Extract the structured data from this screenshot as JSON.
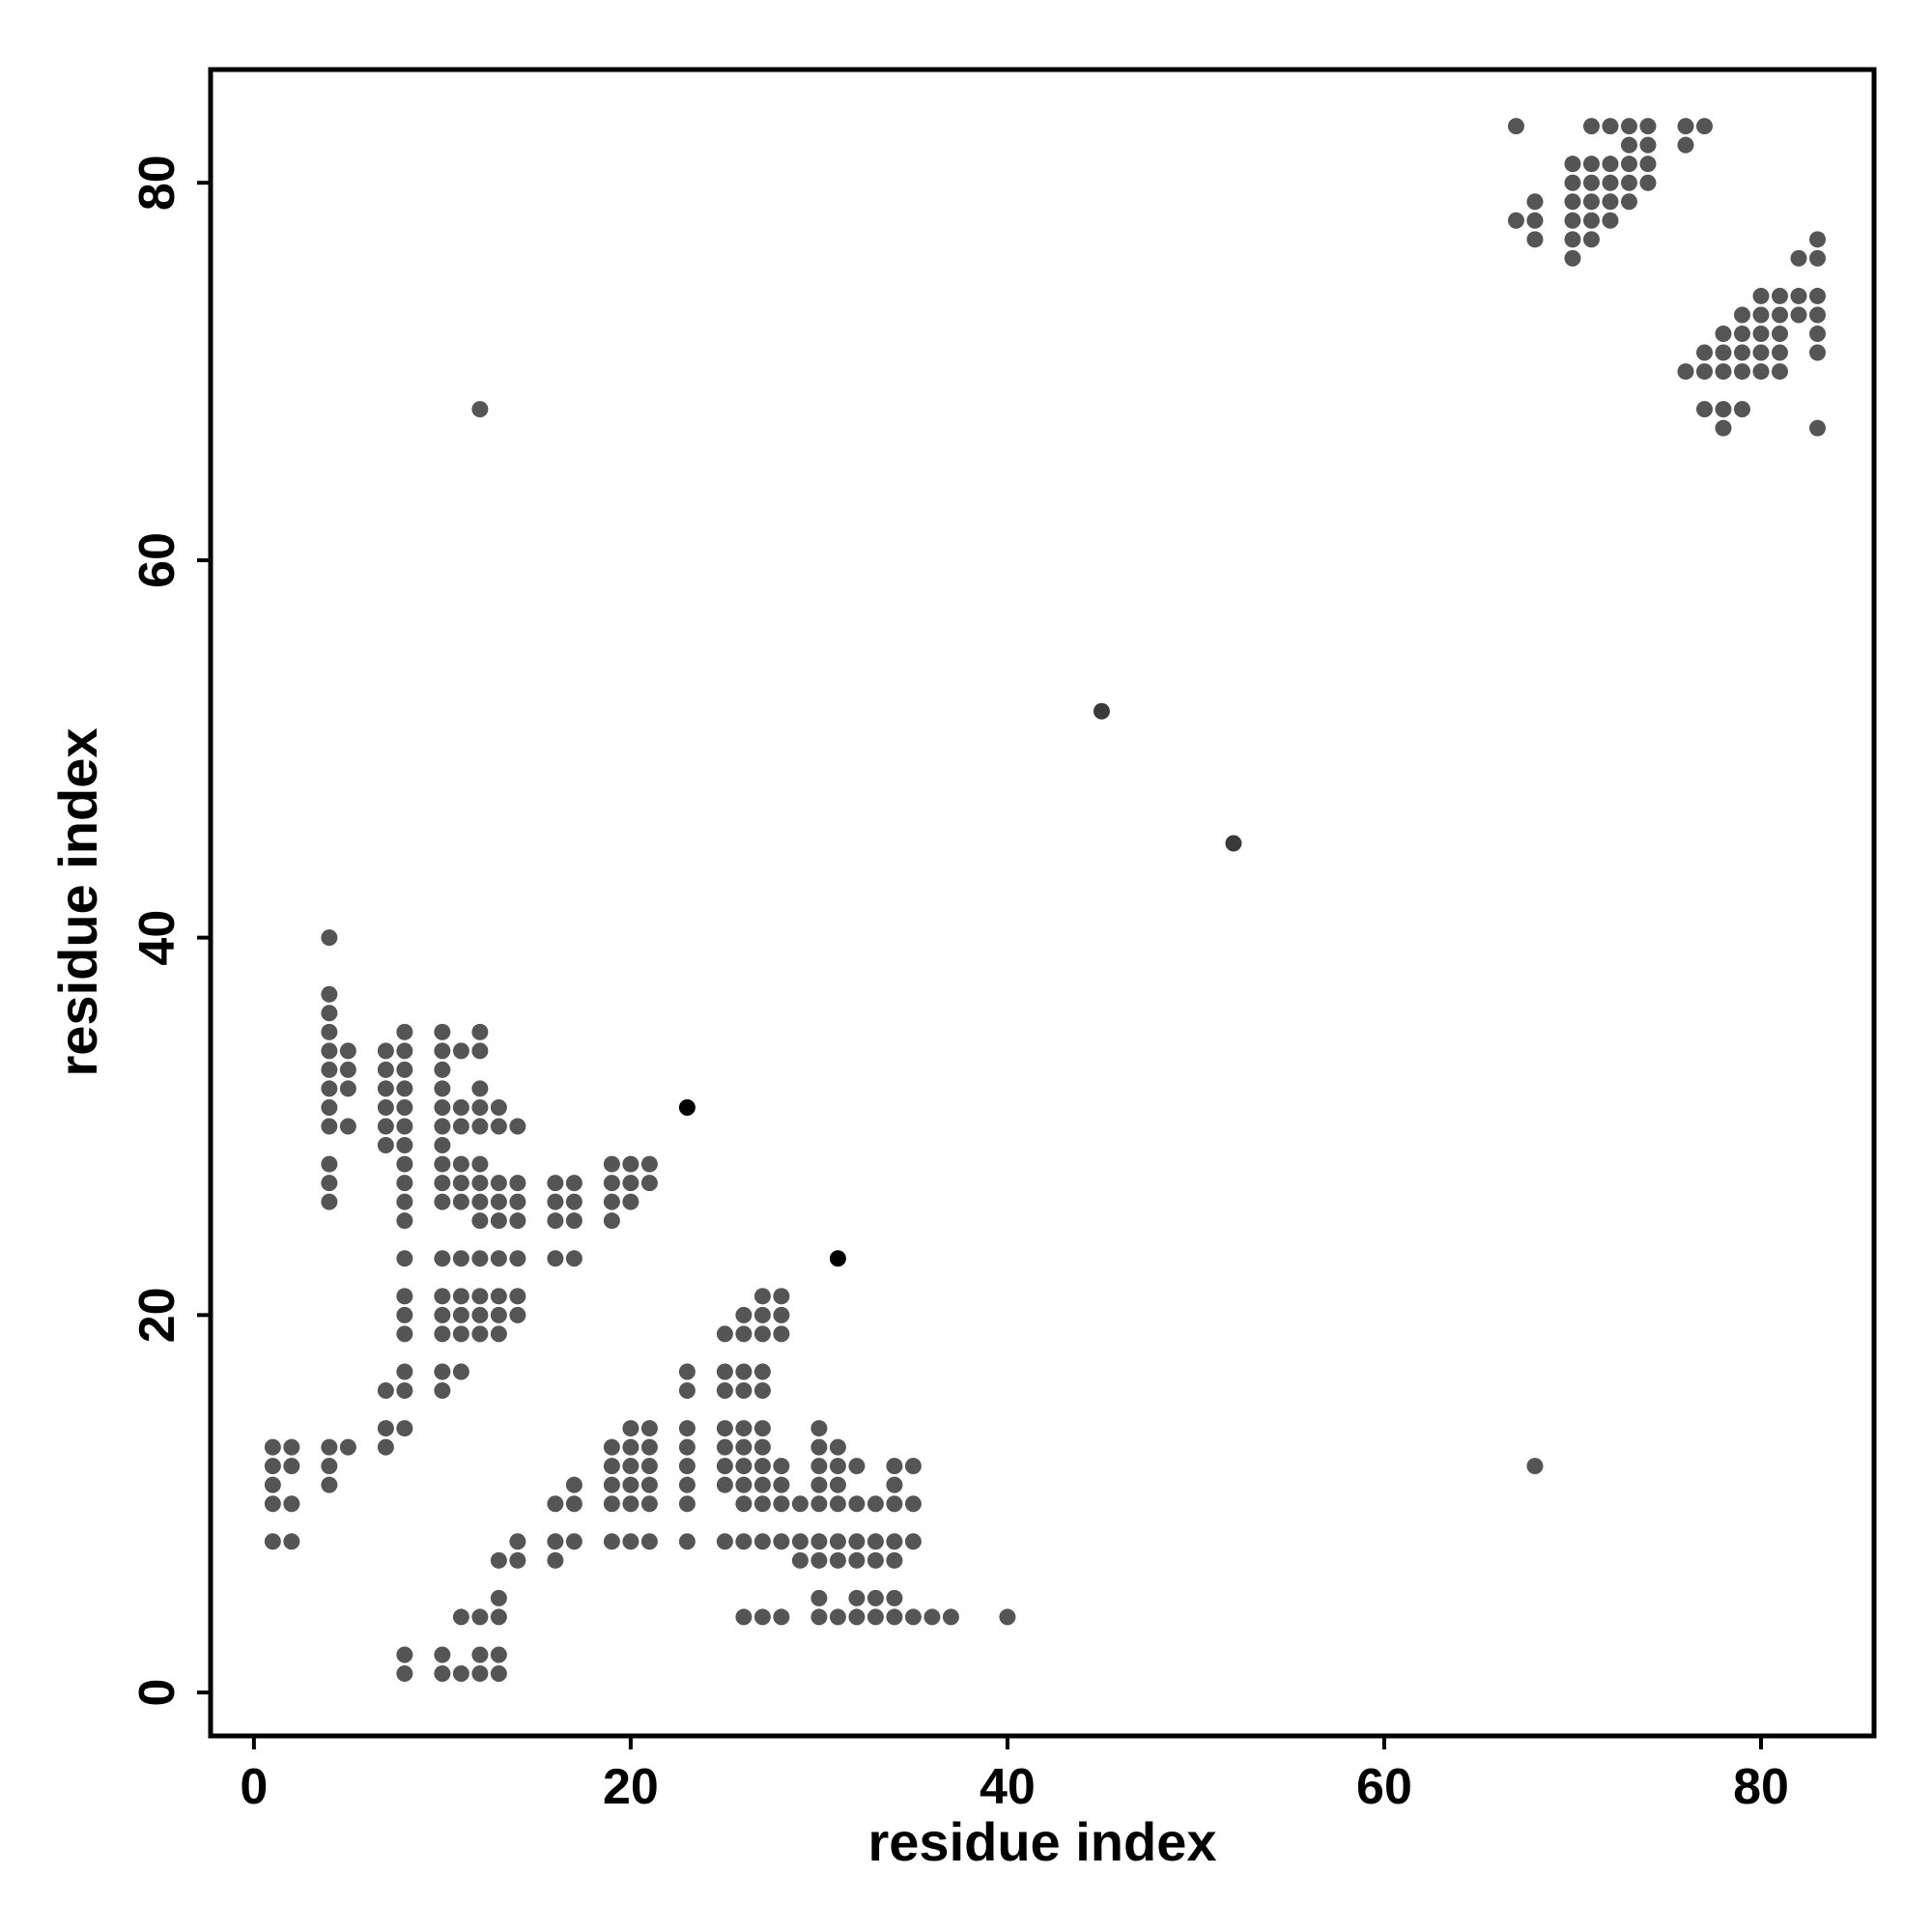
{
  "chart_data": {
    "type": "scatter",
    "title": "",
    "xlabel": "residue index",
    "ylabel": "residue index",
    "xlim": [
      -2.3,
      86
    ],
    "ylim": [
      -2.3,
      86
    ],
    "xticks": [
      0,
      20,
      40,
      60,
      80
    ],
    "yticks": [
      0,
      20,
      40,
      60,
      80
    ],
    "grid": false,
    "legend": "none",
    "point_color": "#555555",
    "highlight_color": "#000000",
    "highlight_points": [
      [
        23,
        31
      ],
      [
        31,
        23
      ]
    ],
    "dark_points": [
      [
        45,
        52
      ],
      [
        52,
        45
      ]
    ],
    "points": [
      [
        12,
        68
      ],
      [
        68,
        12
      ],
      [
        4,
        40
      ],
      [
        4,
        37
      ],
      [
        4,
        36
      ],
      [
        4,
        35
      ],
      [
        4,
        34
      ],
      [
        4,
        33
      ],
      [
        4,
        32
      ],
      [
        4,
        31
      ],
      [
        4,
        30
      ],
      [
        4,
        28
      ],
      [
        4,
        27
      ],
      [
        4,
        26
      ],
      [
        5,
        34
      ],
      [
        5,
        33
      ],
      [
        5,
        32
      ],
      [
        5,
        30
      ],
      [
        7,
        34
      ],
      [
        7,
        33
      ],
      [
        7,
        32
      ],
      [
        7,
        31
      ],
      [
        7,
        30
      ],
      [
        7,
        29
      ],
      [
        8,
        35
      ],
      [
        8,
        34
      ],
      [
        8,
        33
      ],
      [
        8,
        32
      ],
      [
        8,
        31
      ],
      [
        8,
        30
      ],
      [
        8,
        29
      ],
      [
        8,
        28
      ],
      [
        8,
        27
      ],
      [
        8,
        26
      ],
      [
        8,
        25
      ],
      [
        8,
        23
      ],
      [
        8,
        21
      ],
      [
        8,
        20
      ],
      [
        8,
        19
      ],
      [
        8,
        17
      ],
      [
        8,
        16
      ],
      [
        8,
        14
      ],
      [
        7,
        16
      ],
      [
        7,
        14
      ],
      [
        7,
        13
      ],
      [
        10,
        35
      ],
      [
        10,
        34
      ],
      [
        10,
        33
      ],
      [
        10,
        32
      ],
      [
        10,
        31
      ],
      [
        10,
        30
      ],
      [
        10,
        29
      ],
      [
        10,
        28
      ],
      [
        10,
        27
      ],
      [
        10,
        26
      ],
      [
        10,
        23
      ],
      [
        10,
        21
      ],
      [
        10,
        20
      ],
      [
        10,
        19
      ],
      [
        10,
        17
      ],
      [
        10,
        16
      ],
      [
        11,
        34
      ],
      [
        11,
        31
      ],
      [
        11,
        30
      ],
      [
        11,
        28
      ],
      [
        11,
        27
      ],
      [
        11,
        26
      ],
      [
        11,
        23
      ],
      [
        11,
        21
      ],
      [
        11,
        20
      ],
      [
        11,
        19
      ],
      [
        11,
        17
      ],
      [
        12,
        35
      ],
      [
        12,
        34
      ],
      [
        12,
        32
      ],
      [
        12,
        31
      ],
      [
        12,
        30
      ],
      [
        12,
        28
      ],
      [
        12,
        27
      ],
      [
        12,
        26
      ],
      [
        12,
        25
      ],
      [
        12,
        23
      ],
      [
        12,
        21
      ],
      [
        12,
        20
      ],
      [
        12,
        19
      ],
      [
        13,
        31
      ],
      [
        13,
        30
      ],
      [
        13,
        27
      ],
      [
        13,
        26
      ],
      [
        13,
        25
      ],
      [
        13,
        23
      ],
      [
        13,
        21
      ],
      [
        13,
        20
      ],
      [
        13,
        19
      ],
      [
        14,
        30
      ],
      [
        14,
        27
      ],
      [
        14,
        26
      ],
      [
        14,
        25
      ],
      [
        14,
        23
      ],
      [
        14,
        21
      ],
      [
        14,
        20
      ],
      [
        16,
        27
      ],
      [
        16,
        26
      ],
      [
        16,
        25
      ],
      [
        16,
        23
      ],
      [
        17,
        27
      ],
      [
        17,
        26
      ],
      [
        17,
        25
      ],
      [
        17,
        23
      ],
      [
        19,
        28
      ],
      [
        19,
        27
      ],
      [
        19,
        26
      ],
      [
        19,
        25
      ],
      [
        20,
        28
      ],
      [
        20,
        27
      ],
      [
        20,
        26
      ],
      [
        21,
        28
      ],
      [
        21,
        27
      ],
      [
        1,
        13
      ],
      [
        1,
        12
      ],
      [
        1,
        11
      ],
      [
        1,
        10
      ],
      [
        1,
        8
      ],
      [
        2,
        13
      ],
      [
        2,
        12
      ],
      [
        2,
        10
      ],
      [
        2,
        8
      ],
      [
        4,
        13
      ],
      [
        4,
        12
      ],
      [
        4,
        11
      ],
      [
        5,
        13
      ],
      [
        8,
        2
      ],
      [
        8,
        1
      ],
      [
        10,
        2
      ],
      [
        10,
        1
      ],
      [
        11,
        4
      ],
      [
        11,
        1
      ],
      [
        12,
        4
      ],
      [
        12,
        2
      ],
      [
        12,
        1
      ],
      [
        13,
        5
      ],
      [
        13,
        4
      ],
      [
        13,
        2
      ],
      [
        13,
        1
      ],
      [
        13,
        7
      ],
      [
        14,
        8
      ],
      [
        14,
        7
      ],
      [
        16,
        10
      ],
      [
        16,
        8
      ],
      [
        16,
        7
      ],
      [
        17,
        11
      ],
      [
        17,
        10
      ],
      [
        17,
        8
      ],
      [
        19,
        13
      ],
      [
        19,
        12
      ],
      [
        19,
        11
      ],
      [
        19,
        10
      ],
      [
        19,
        8
      ],
      [
        20,
        14
      ],
      [
        20,
        13
      ],
      [
        20,
        12
      ],
      [
        20,
        11
      ],
      [
        20,
        10
      ],
      [
        20,
        8
      ],
      [
        21,
        14
      ],
      [
        21,
        13
      ],
      [
        21,
        12
      ],
      [
        21,
        11
      ],
      [
        21,
        10
      ],
      [
        21,
        8
      ],
      [
        23,
        17
      ],
      [
        23,
        16
      ],
      [
        23,
        14
      ],
      [
        23,
        13
      ],
      [
        23,
        12
      ],
      [
        23,
        11
      ],
      [
        23,
        10
      ],
      [
        23,
        8
      ],
      [
        25,
        19
      ],
      [
        25,
        17
      ],
      [
        25,
        16
      ],
      [
        25,
        14
      ],
      [
        25,
        13
      ],
      [
        25,
        12
      ],
      [
        25,
        11
      ],
      [
        25,
        8
      ],
      [
        26,
        20
      ],
      [
        26,
        19
      ],
      [
        26,
        17
      ],
      [
        26,
        16
      ],
      [
        26,
        14
      ],
      [
        26,
        13
      ],
      [
        26,
        12
      ],
      [
        26,
        11
      ],
      [
        26,
        10
      ],
      [
        26,
        8
      ],
      [
        26,
        4
      ],
      [
        27,
        21
      ],
      [
        27,
        20
      ],
      [
        27,
        19
      ],
      [
        27,
        17
      ],
      [
        27,
        16
      ],
      [
        27,
        14
      ],
      [
        27,
        13
      ],
      [
        27,
        12
      ],
      [
        27,
        11
      ],
      [
        27,
        10
      ],
      [
        27,
        8
      ],
      [
        27,
        4
      ],
      [
        28,
        21
      ],
      [
        28,
        20
      ],
      [
        28,
        19
      ],
      [
        28,
        12
      ],
      [
        28,
        11
      ],
      [
        28,
        10
      ],
      [
        28,
        8
      ],
      [
        28,
        4
      ],
      [
        29,
        10
      ],
      [
        29,
        8
      ],
      [
        29,
        7
      ],
      [
        30,
        14
      ],
      [
        30,
        13
      ],
      [
        30,
        12
      ],
      [
        30,
        11
      ],
      [
        30,
        10
      ],
      [
        30,
        8
      ],
      [
        30,
        7
      ],
      [
        30,
        5
      ],
      [
        30,
        4
      ],
      [
        31,
        13
      ],
      [
        31,
        12
      ],
      [
        31,
        11
      ],
      [
        31,
        10
      ],
      [
        31,
        8
      ],
      [
        31,
        7
      ],
      [
        31,
        4
      ],
      [
        32,
        12
      ],
      [
        32,
        10
      ],
      [
        32,
        8
      ],
      [
        32,
        7
      ],
      [
        32,
        5
      ],
      [
        32,
        4
      ],
      [
        33,
        10
      ],
      [
        33,
        8
      ],
      [
        33,
        7
      ],
      [
        33,
        5
      ],
      [
        33,
        4
      ],
      [
        34,
        12
      ],
      [
        34,
        11
      ],
      [
        34,
        10
      ],
      [
        34,
        8
      ],
      [
        34,
        7
      ],
      [
        34,
        5
      ],
      [
        34,
        4
      ],
      [
        35,
        12
      ],
      [
        35,
        10
      ],
      [
        35,
        8
      ],
      [
        35,
        4
      ],
      [
        36,
        4
      ],
      [
        37,
        4
      ],
      [
        40,
        4
      ],
      [
        67,
        83
      ],
      [
        67,
        78
      ],
      [
        68,
        79
      ],
      [
        68,
        78
      ],
      [
        68,
        77
      ],
      [
        70,
        81
      ],
      [
        70,
        80
      ],
      [
        70,
        79
      ],
      [
        70,
        78
      ],
      [
        70,
        77
      ],
      [
        70,
        76
      ],
      [
        71,
        83
      ],
      [
        71,
        81
      ],
      [
        71,
        80
      ],
      [
        71,
        79
      ],
      [
        71,
        78
      ],
      [
        71,
        77
      ],
      [
        72,
        83
      ],
      [
        72,
        81
      ],
      [
        72,
        80
      ],
      [
        72,
        79
      ],
      [
        72,
        78
      ],
      [
        73,
        83
      ],
      [
        73,
        82
      ],
      [
        73,
        81
      ],
      [
        73,
        80
      ],
      [
        73,
        79
      ],
      [
        74,
        83
      ],
      [
        74,
        82
      ],
      [
        74,
        81
      ],
      [
        74,
        80
      ],
      [
        76,
        83
      ],
      [
        76,
        82
      ],
      [
        77,
        83
      ],
      [
        76,
        70
      ],
      [
        77,
        71
      ],
      [
        77,
        70
      ],
      [
        77,
        68
      ],
      [
        78,
        72
      ],
      [
        78,
        71
      ],
      [
        78,
        70
      ],
      [
        78,
        68
      ],
      [
        78,
        67
      ],
      [
        79,
        73
      ],
      [
        79,
        72
      ],
      [
        79,
        71
      ],
      [
        79,
        70
      ],
      [
        79,
        68
      ],
      [
        80,
        74
      ],
      [
        80,
        73
      ],
      [
        80,
        72
      ],
      [
        80,
        71
      ],
      [
        80,
        70
      ],
      [
        81,
        74
      ],
      [
        81,
        73
      ],
      [
        81,
        72
      ],
      [
        81,
        71
      ],
      [
        81,
        70
      ],
      [
        82,
        76
      ],
      [
        82,
        74
      ],
      [
        82,
        73
      ],
      [
        83,
        77
      ],
      [
        83,
        76
      ],
      [
        83,
        74
      ],
      [
        83,
        73
      ],
      [
        83,
        72
      ],
      [
        83,
        71
      ],
      [
        83,
        67
      ]
    ]
  }
}
